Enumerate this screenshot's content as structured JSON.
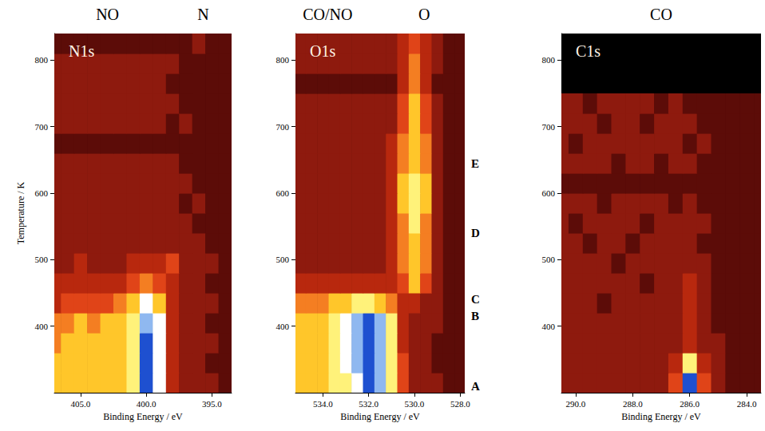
{
  "chart_data": [
    {
      "type": "heatmap",
      "labels": [
        "NO",
        "N"
      ],
      "panel_label": "N1s",
      "x_label": "Binding Energy / eV",
      "y_label": "Temperature / K",
      "grid": false,
      "xlim": [
        407,
        393.5
      ],
      "ylim": [
        300,
        840
      ],
      "xticks": [
        {
          "value": 405,
          "label": "405.0"
        },
        {
          "value": 400,
          "label": "400.0"
        },
        {
          "value": 395,
          "label": "395.0"
        }
      ],
      "yticks": [
        400,
        500,
        600,
        700,
        800
      ],
      "zlim": [
        0,
        10
      ],
      "x": [
        407,
        406,
        405,
        404,
        403,
        402,
        401,
        400,
        399,
        398,
        397,
        396,
        395,
        394
      ],
      "y": [
        315,
        345,
        375,
        405,
        435,
        465,
        495,
        525,
        555,
        585,
        615,
        645,
        675,
        705,
        735,
        765,
        795,
        825
      ],
      "cells": [
        [
          6,
          6,
          6,
          6,
          6,
          6,
          7,
          10,
          8,
          3,
          2,
          2,
          2,
          1
        ],
        [
          6,
          6,
          6,
          6,
          6,
          6,
          7,
          10,
          8,
          3,
          2,
          2,
          1,
          1
        ],
        [
          5,
          6,
          6,
          6,
          6,
          6,
          7,
          10,
          8,
          3,
          2,
          2,
          2,
          1
        ],
        [
          5,
          5,
          6,
          5,
          6,
          6,
          7,
          9,
          8,
          3,
          2,
          2,
          1,
          1
        ],
        [
          3,
          4,
          4,
          4,
          4,
          5,
          6,
          8,
          6,
          3,
          2,
          2,
          2,
          1
        ],
        [
          3,
          3,
          3,
          3,
          3,
          3,
          4,
          5,
          4,
          3,
          2,
          2,
          1,
          1
        ],
        [
          2,
          2,
          3,
          2,
          2,
          2,
          3,
          3,
          3,
          4,
          2,
          2,
          2,
          1
        ],
        [
          2,
          2,
          2,
          2,
          2,
          2,
          2,
          2,
          2,
          2,
          2,
          2,
          1,
          1
        ],
        [
          2,
          2,
          2,
          2,
          2,
          2,
          2,
          2,
          2,
          2,
          2,
          1,
          1,
          1
        ],
        [
          2,
          2,
          2,
          2,
          2,
          2,
          2,
          2,
          2,
          2,
          1,
          2,
          1,
          1
        ],
        [
          2,
          2,
          2,
          2,
          2,
          2,
          2,
          2,
          2,
          2,
          2,
          1,
          1,
          1
        ],
        [
          2,
          2,
          2,
          2,
          2,
          2,
          2,
          2,
          2,
          2,
          1,
          1,
          1,
          1
        ],
        [
          1,
          1,
          1,
          1,
          1,
          1,
          1,
          1,
          1,
          1,
          1,
          1,
          1,
          1
        ],
        [
          2,
          2,
          2,
          2,
          2,
          2,
          2,
          2,
          2,
          1,
          2,
          1,
          1,
          1
        ],
        [
          2,
          2,
          2,
          2,
          2,
          2,
          2,
          2,
          2,
          2,
          1,
          1,
          1,
          1
        ],
        [
          2,
          2,
          2,
          2,
          2,
          2,
          2,
          2,
          2,
          1,
          1,
          1,
          1,
          1
        ],
        [
          2,
          2,
          2,
          2,
          2,
          2,
          2,
          2,
          2,
          2,
          1,
          1,
          1,
          1
        ],
        [
          1,
          1,
          1,
          1,
          1,
          1,
          1,
          1,
          1,
          1,
          1,
          2,
          1,
          1
        ]
      ]
    },
    {
      "type": "heatmap",
      "labels": [
        "CO/NO",
        "O"
      ],
      "panel_label": "O1s",
      "x_label": "Binding Energy / eV",
      "grid": false,
      "xlim": [
        535.2,
        527.8
      ],
      "ylim": [
        300,
        840
      ],
      "xticks": [
        {
          "value": 534,
          "label": "534.0"
        },
        {
          "value": 532,
          "label": "532.0"
        },
        {
          "value": 530,
          "label": "530.0"
        },
        {
          "value": 528,
          "label": "528.0"
        }
      ],
      "yticks": [
        400,
        500,
        600,
        700,
        800
      ],
      "zlim": [
        0,
        10
      ],
      "annotations": [
        {
          "text": "A",
          "y": 310
        },
        {
          "text": "B",
          "y": 415
        },
        {
          "text": "C",
          "y": 440
        },
        {
          "text": "D",
          "y": 540
        },
        {
          "text": "E",
          "y": 645
        }
      ],
      "x": [
        535,
        534.5,
        534,
        533.5,
        533,
        532.5,
        532,
        531.5,
        531,
        530.5,
        530,
        529.5,
        529,
        528.5,
        528
      ],
      "y": [
        315,
        345,
        375,
        405,
        435,
        465,
        495,
        525,
        555,
        585,
        615,
        645,
        675,
        705,
        735,
        765,
        795,
        825
      ],
      "cells": [
        [
          6,
          6,
          6,
          7,
          7,
          8,
          10,
          9,
          7,
          4,
          2,
          2,
          2,
          1,
          1
        ],
        [
          6,
          6,
          6,
          7,
          8,
          9,
          10,
          9,
          7,
          4,
          2,
          2,
          1,
          1,
          1
        ],
        [
          6,
          6,
          6,
          7,
          8,
          9,
          10,
          9,
          7,
          3,
          2,
          2,
          1,
          1,
          1
        ],
        [
          6,
          6,
          6,
          7,
          8,
          9,
          10,
          9,
          7,
          3,
          2,
          2,
          2,
          1,
          1
        ],
        [
          5,
          5,
          5,
          6,
          6,
          7,
          7,
          6,
          5,
          3,
          3,
          2,
          2,
          1,
          1
        ],
        [
          3,
          3,
          3,
          3,
          3,
          3,
          3,
          3,
          3,
          4,
          6,
          4,
          2,
          1,
          1
        ],
        [
          2,
          2,
          2,
          2,
          2,
          2,
          2,
          2,
          3,
          5,
          6,
          5,
          2,
          1,
          1
        ],
        [
          2,
          2,
          2,
          2,
          2,
          2,
          2,
          2,
          3,
          5,
          6,
          5,
          2,
          1,
          1
        ],
        [
          2,
          2,
          2,
          2,
          2,
          2,
          2,
          2,
          3,
          5,
          7,
          5,
          2,
          1,
          1
        ],
        [
          2,
          2,
          2,
          2,
          2,
          2,
          2,
          2,
          3,
          6,
          7,
          6,
          2,
          1,
          1
        ],
        [
          2,
          2,
          2,
          2,
          2,
          2,
          2,
          2,
          3,
          6,
          7,
          6,
          2,
          1,
          1
        ],
        [
          2,
          2,
          2,
          2,
          2,
          2,
          2,
          2,
          3,
          5,
          6,
          5,
          2,
          1,
          1
        ],
        [
          2,
          2,
          2,
          2,
          2,
          2,
          2,
          2,
          3,
          5,
          6,
          5,
          2,
          1,
          1
        ],
        [
          2,
          2,
          2,
          2,
          2,
          2,
          2,
          2,
          2,
          4,
          6,
          4,
          2,
          1,
          1
        ],
        [
          2,
          2,
          2,
          2,
          2,
          2,
          2,
          2,
          2,
          4,
          6,
          4,
          2,
          1,
          1
        ],
        [
          1,
          1,
          1,
          1,
          1,
          1,
          1,
          1,
          1,
          3,
          5,
          3,
          1,
          1,
          1
        ],
        [
          2,
          2,
          2,
          2,
          2,
          2,
          2,
          2,
          2,
          3,
          5,
          3,
          2,
          1,
          1
        ],
        [
          2,
          2,
          2,
          2,
          2,
          2,
          2,
          2,
          2,
          3,
          4,
          3,
          2,
          1,
          1
        ]
      ]
    },
    {
      "type": "heatmap",
      "labels": [
        "CO"
      ],
      "panel_label": "C1s",
      "x_label": "Binding Energy / eV",
      "grid": false,
      "xlim": [
        290.5,
        283.5
      ],
      "ylim": [
        300,
        840
      ],
      "xticks": [
        {
          "value": 290,
          "label": "290.0"
        },
        {
          "value": 288,
          "label": "288.0"
        },
        {
          "value": 286,
          "label": "286.0"
        },
        {
          "value": 284,
          "label": "284.0"
        }
      ],
      "yticks": [
        400,
        500,
        600,
        700,
        800
      ],
      "zlim": [
        0,
        10
      ],
      "x": [
        290.5,
        290,
        289.5,
        289,
        288.5,
        288,
        287.5,
        287,
        286.5,
        286,
        285.5,
        285,
        284.5,
        284,
        283.5
      ],
      "y": [
        315,
        345,
        375,
        405,
        435,
        465,
        495,
        525,
        555,
        585,
        615,
        645,
        675,
        705,
        735,
        765,
        795,
        825
      ],
      "cells": [
        [
          2,
          2,
          2,
          2,
          2,
          2,
          2,
          2,
          4,
          10,
          4,
          2,
          1,
          1,
          1
        ],
        [
          2,
          2,
          2,
          2,
          2,
          2,
          2,
          2,
          3,
          7,
          3,
          2,
          1,
          1,
          1
        ],
        [
          2,
          2,
          2,
          2,
          2,
          2,
          2,
          2,
          2,
          3,
          2,
          2,
          1,
          1,
          1
        ],
        [
          2,
          2,
          2,
          2,
          2,
          2,
          2,
          2,
          2,
          3,
          2,
          1,
          1,
          1,
          1
        ],
        [
          2,
          2,
          2,
          1,
          2,
          2,
          2,
          2,
          2,
          3,
          2,
          1,
          1,
          1,
          1
        ],
        [
          2,
          2,
          2,
          2,
          2,
          2,
          1,
          2,
          2,
          3,
          2,
          1,
          1,
          1,
          1
        ],
        [
          2,
          2,
          2,
          2,
          1,
          2,
          2,
          2,
          2,
          2,
          2,
          1,
          1,
          1,
          1
        ],
        [
          2,
          2,
          1,
          2,
          2,
          1,
          2,
          2,
          2,
          2,
          1,
          1,
          1,
          1,
          1
        ],
        [
          2,
          1,
          2,
          2,
          2,
          2,
          1,
          2,
          2,
          2,
          2,
          1,
          1,
          1,
          1
        ],
        [
          2,
          2,
          2,
          1,
          2,
          2,
          2,
          2,
          1,
          2,
          1,
          1,
          1,
          1,
          1
        ],
        [
          1,
          1,
          1,
          1,
          1,
          1,
          1,
          1,
          1,
          1,
          1,
          1,
          1,
          1,
          1
        ],
        [
          2,
          2,
          2,
          2,
          1,
          2,
          2,
          1,
          2,
          2,
          1,
          1,
          1,
          1,
          1
        ],
        [
          2,
          1,
          2,
          2,
          2,
          2,
          2,
          2,
          2,
          1,
          2,
          1,
          1,
          1,
          1
        ],
        [
          2,
          2,
          2,
          1,
          2,
          2,
          1,
          2,
          2,
          2,
          1,
          1,
          1,
          1,
          1
        ],
        [
          2,
          2,
          1,
          2,
          2,
          2,
          2,
          1,
          2,
          1,
          1,
          1,
          1,
          1,
          1
        ],
        [
          null,
          null,
          null,
          null,
          null,
          null,
          null,
          null,
          null,
          null,
          null,
          null,
          null,
          null,
          null
        ],
        [
          null,
          null,
          null,
          null,
          null,
          null,
          null,
          null,
          null,
          null,
          null,
          null,
          null,
          null,
          null
        ],
        [
          null,
          null,
          null,
          null,
          null,
          null,
          null,
          null,
          null,
          null,
          null,
          null,
          null,
          null,
          null
        ]
      ]
    }
  ]
}
